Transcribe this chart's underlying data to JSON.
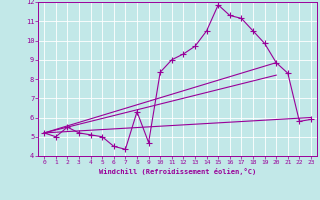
{
  "xlabel": "Windchill (Refroidissement éolien,°C)",
  "xlim": [
    -0.5,
    23.5
  ],
  "ylim": [
    4,
    12
  ],
  "xticks": [
    0,
    1,
    2,
    3,
    4,
    5,
    6,
    7,
    8,
    9,
    10,
    11,
    12,
    13,
    14,
    15,
    16,
    17,
    18,
    19,
    20,
    21,
    22,
    23
  ],
  "yticks": [
    4,
    5,
    6,
    7,
    8,
    9,
    10,
    11,
    12
  ],
  "bg_color": "#c2e8e8",
  "line_color": "#990099",
  "grid_color": "#b0d8d8",
  "series": [
    {
      "x": [
        0,
        1,
        2,
        3,
        4,
        5,
        6,
        7,
        8,
        9,
        10,
        11,
        12,
        13,
        14,
        15,
        16,
        17,
        18,
        19,
        20,
        21,
        22,
        23
      ],
      "y": [
        5.2,
        5.0,
        5.5,
        5.2,
        5.1,
        5.0,
        4.5,
        4.35,
        6.3,
        4.7,
        8.35,
        9.0,
        9.3,
        9.7,
        10.5,
        11.85,
        11.3,
        11.15,
        10.5,
        9.85,
        8.85,
        8.3,
        5.8,
        5.9
      ],
      "marker": "+",
      "markersize": 4,
      "linewidth": 0.8
    },
    {
      "x": [
        0,
        20
      ],
      "y": [
        5.2,
        8.85
      ],
      "marker": null,
      "linewidth": 0.8
    },
    {
      "x": [
        0,
        20
      ],
      "y": [
        5.2,
        8.2
      ],
      "marker": null,
      "linewidth": 0.8
    },
    {
      "x": [
        0,
        23
      ],
      "y": [
        5.2,
        6.0
      ],
      "marker": null,
      "linewidth": 0.8
    }
  ]
}
